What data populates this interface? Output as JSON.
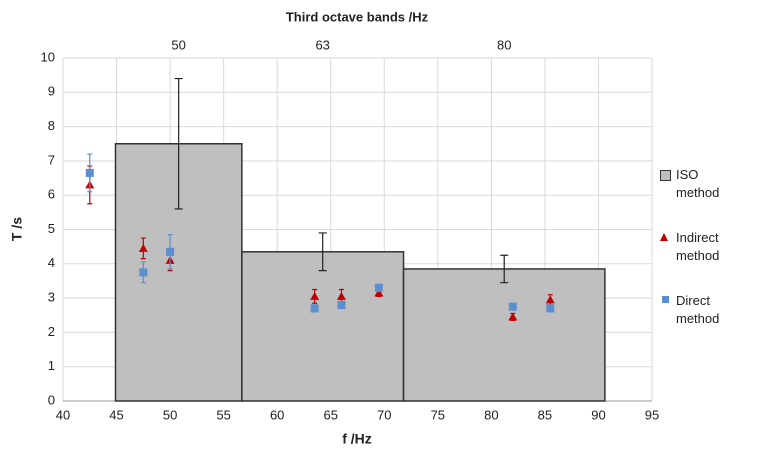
{
  "chart_data": {
    "type": "histogram",
    "x2label": "Third octave bands /Hz",
    "xlabel": "f /Hz",
    "ylabel": "T /s",
    "bins": [
      44.9,
      56.7,
      71.8,
      90.6
    ],
    "values": [
      7.5,
      4.35,
      3.85
    ],
    "errors": [
      1.9,
      0.55,
      0.4
    ],
    "band_labels": [
      "50",
      "63",
      "80"
    ],
    "name": "ISO method",
    "color": "#bfbfbf",
    "series": [
      {
        "name": "Indirect method",
        "type": "scatter",
        "marker": "triangle",
        "color": "#c00000",
        "x": [
          42.5,
          47.5,
          50,
          63.5,
          66,
          69.5,
          82,
          85.5
        ],
        "values": [
          6.3,
          4.45,
          4.1,
          3.05,
          3.05,
          3.15,
          2.45,
          2.95
        ],
        "errors": [
          0.55,
          0.3,
          0.3,
          0.2,
          0.2,
          0.1,
          0.1,
          0.15
        ]
      },
      {
        "name": "Direct method",
        "type": "scatter",
        "marker": "square",
        "color": "#5b8fd0",
        "x": [
          42.5,
          47.5,
          50,
          63.5,
          66,
          69.5,
          82,
          85.5
        ],
        "values": [
          6.65,
          3.75,
          4.35,
          2.7,
          2.8,
          3.3,
          2.75,
          2.7
        ],
        "errors": [
          0.55,
          0.3,
          0.5,
          0.1,
          0.1,
          0.1,
          0.1,
          0.1
        ]
      }
    ],
    "xlim": [
      40,
      95
    ],
    "xticks": [
      40,
      45,
      50,
      55,
      60,
      65,
      70,
      75,
      80,
      85,
      90,
      95
    ],
    "ylim": [
      0,
      10
    ],
    "yticks": [
      0,
      1,
      2,
      3,
      4,
      5,
      6,
      7,
      8,
      9,
      10
    ],
    "grid": true
  }
}
